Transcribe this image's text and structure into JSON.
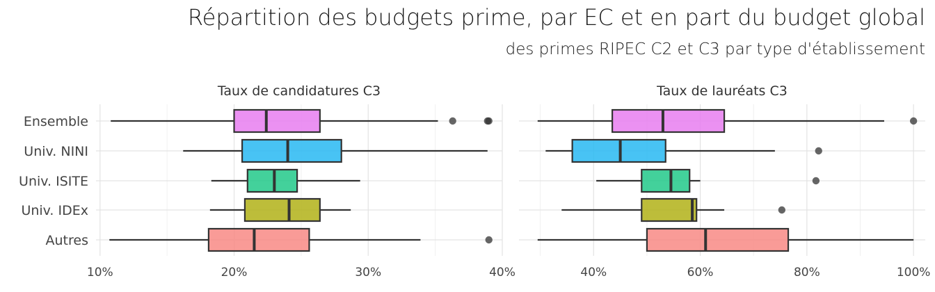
{
  "title": "Répartition des budgets prime, par EC et en part du budget global",
  "subtitle": "des primes RIPEC C2 et C3 par type d'établissement",
  "chart_data": {
    "type": "boxplot",
    "orientation": "horizontal",
    "categories": [
      "Ensemble",
      "Univ. NINI",
      "Univ. ISITE",
      "Univ. IDEx",
      "Autres"
    ],
    "colors": {
      "Ensemble": "#e87ef0",
      "Univ. NINI": "#28b8f2",
      "Univ. ISITE": "#22c98a",
      "Univ. IDEx": "#b2b218",
      "Autres": "#f88a85"
    },
    "grid": true,
    "facets": [
      {
        "title": "Taux de candidatures C3",
        "xlim": [
          9.7,
          40
        ],
        "ticks": [
          10,
          20,
          30,
          40
        ],
        "tick_labels": [
          "10%",
          "20%",
          "30%",
          "40%"
        ],
        "boxes": [
          {
            "category": "Ensemble",
            "min": 10.8,
            "q1": 20.0,
            "median": 22.4,
            "q3": 26.4,
            "max": 35.2,
            "outliers": [
              36.3,
              38.9,
              39.0
            ]
          },
          {
            "category": "Univ. NINI",
            "min": 16.2,
            "q1": 20.6,
            "median": 24.0,
            "q3": 28.0,
            "max": 38.9,
            "outliers": []
          },
          {
            "category": "Univ. ISITE",
            "min": 18.3,
            "q1": 21.0,
            "median": 23.0,
            "q3": 24.7,
            "max": 29.4,
            "outliers": []
          },
          {
            "category": "Univ. IDEx",
            "min": 18.2,
            "q1": 20.8,
            "median": 24.1,
            "q3": 26.4,
            "max": 28.7,
            "outliers": []
          },
          {
            "category": "Autres",
            "min": 10.7,
            "q1": 18.1,
            "median": 21.5,
            "q3": 25.6,
            "max": 33.9,
            "outliers": [
              39.0
            ]
          }
        ]
      },
      {
        "title": "Taux de lauréats C3",
        "xlim": [
          26,
          102.2
        ],
        "ticks": [
          40,
          60,
          80,
          100
        ],
        "tick_labels": [
          "40%",
          "60%",
          "80%",
          "100%"
        ],
        "boxes": [
          {
            "category": "Ensemble",
            "min": 29.5,
            "q1": 43.5,
            "median": 53.0,
            "q3": 64.5,
            "max": 94.5,
            "outliers": [
              100.0
            ]
          },
          {
            "category": "Univ. NINI",
            "min": 31.0,
            "q1": 36.0,
            "median": 45.0,
            "q3": 53.5,
            "max": 74.0,
            "outliers": [
              82.2
            ]
          },
          {
            "category": "Univ. ISITE",
            "min": 40.5,
            "q1": 49.0,
            "median": 54.5,
            "q3": 58.0,
            "max": 60.0,
            "outliers": [
              81.7
            ]
          },
          {
            "category": "Univ. IDEx",
            "min": 34.0,
            "q1": 49.0,
            "median": 58.5,
            "q3": 59.3,
            "max": 64.5,
            "outliers": [
              75.3
            ]
          },
          {
            "category": "Autres",
            "min": 29.5,
            "q1": 50.0,
            "median": 61.0,
            "q3": 76.5,
            "max": 100.0,
            "outliers": []
          }
        ]
      }
    ]
  }
}
